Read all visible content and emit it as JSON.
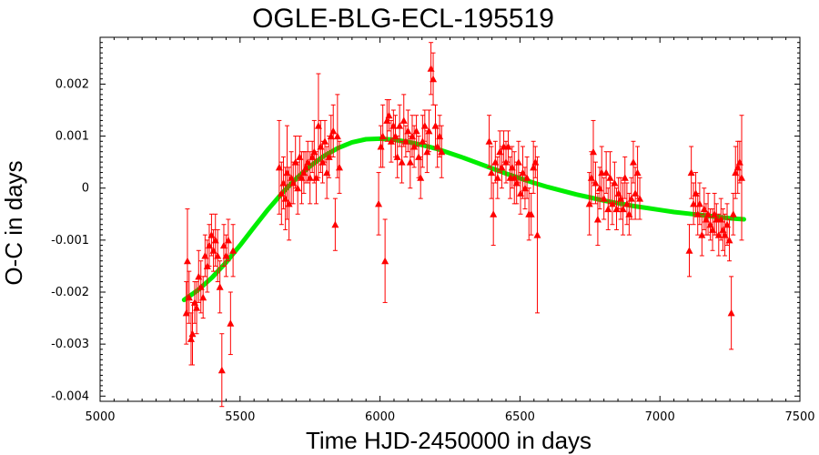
{
  "chart_data": {
    "type": "scatter",
    "title": "OGLE-BLG-ECL-195519",
    "xlabel": "Time HJD-2450000 in days",
    "ylabel": "O-C in days",
    "xlim": [
      5000,
      7500
    ],
    "ylim": [
      -0.0041,
      0.0029
    ],
    "x_ticks": [
      5000,
      5500,
      6000,
      6500,
      7000,
      7500
    ],
    "x_tick_labels": [
      "5000",
      "5500",
      "6000",
      "6500",
      "7000",
      "7500"
    ],
    "y_ticks": [
      0.002,
      0.001,
      0,
      -0.001,
      -0.002,
      -0.003,
      -0.004
    ],
    "y_tick_labels": [
      "0.002",
      "0.001",
      "0",
      "-0.001",
      "-0.002",
      "-0.003",
      "-0.004"
    ],
    "grid": false,
    "colors": {
      "points": "#ff0000",
      "fit": "#00ee00"
    },
    "series": [
      {
        "kind": "points_with_errorbars",
        "points": [
          [
            5308,
            -0.0024,
            0.0006
          ],
          [
            5312,
            -0.0014,
            0.001
          ],
          [
            5318,
            -0.0021,
            0.0005
          ],
          [
            5325,
            -0.0029,
            0.0005
          ],
          [
            5330,
            -0.0028,
            0.0006
          ],
          [
            5338,
            -0.0022,
            0.0004
          ],
          [
            5345,
            -0.0023,
            0.0005
          ],
          [
            5352,
            -0.0017,
            0.0005
          ],
          [
            5360,
            -0.0019,
            0.0005
          ],
          [
            5368,
            -0.0021,
            0.0004
          ],
          [
            5375,
            -0.0013,
            0.0004
          ],
          [
            5383,
            -0.0015,
            0.0005
          ],
          [
            5390,
            -0.0011,
            0.0004
          ],
          [
            5398,
            -0.0009,
            0.0004
          ],
          [
            5405,
            -0.0012,
            0.0004
          ],
          [
            5412,
            -0.001,
            0.0005
          ],
          [
            5420,
            -0.0013,
            0.0005
          ],
          [
            5428,
            -0.0019,
            0.0005
          ],
          [
            5435,
            -0.0035,
            0.0007
          ],
          [
            5442,
            -0.0011,
            0.0004
          ],
          [
            5450,
            -0.0013,
            0.0004
          ],
          [
            5458,
            -0.001,
            0.0004
          ],
          [
            5466,
            -0.0026,
            0.0006
          ],
          [
            5475,
            -0.0012,
            0.0005
          ],
          [
            5640,
            0.0004,
            0.0009
          ],
          [
            5648,
            -0.0001,
            0.0006
          ],
          [
            5655,
            0.0001,
            0.0005
          ],
          [
            5662,
            -0.0002,
            0.0006
          ],
          [
            5668,
            0.0003,
            0.0009
          ],
          [
            5675,
            -0.0003,
            0.0007
          ],
          [
            5683,
            0.0002,
            0.0005
          ],
          [
            5690,
            0.0001,
            0.0004
          ],
          [
            5698,
            0.0005,
            0.0005
          ],
          [
            5706,
            0.0,
            0.0005
          ],
          [
            5713,
            0.0006,
            0.0004
          ],
          [
            5720,
            0.0002,
            0.0005
          ],
          [
            5728,
            0.0003,
            0.0004
          ],
          [
            5735,
            0.0004,
            0.0003
          ],
          [
            5742,
            0.0005,
            0.0004
          ],
          [
            5750,
            0.0002,
            0.0005
          ],
          [
            5758,
            0.0006,
            0.0003
          ],
          [
            5765,
            0.0007,
            0.0006
          ],
          [
            5772,
            0.0002,
            0.0005
          ],
          [
            5780,
            0.0012,
            0.001
          ],
          [
            5788,
            0.0008,
            0.0005
          ],
          [
            5795,
            0.0005,
            0.0004
          ],
          [
            5803,
            0.0009,
            0.0004
          ],
          [
            5810,
            0.0003,
            0.0005
          ],
          [
            5818,
            0.0006,
            0.0004
          ],
          [
            5825,
            0.001,
            0.0004
          ],
          [
            5833,
            0.0011,
            0.0005
          ],
          [
            5840,
            -0.0007,
            0.0005
          ],
          [
            5848,
            0.001,
            0.0008
          ],
          [
            5855,
            0.0004,
            0.0005
          ],
          [
            5995,
            -0.0003,
            0.0006
          ],
          [
            6003,
            0.0008,
            0.0004
          ],
          [
            6010,
            0.001,
            0.0006
          ],
          [
            6018,
            -0.0014,
            0.0008
          ],
          [
            6025,
            0.0013,
            0.0004
          ],
          [
            6032,
            0.0014,
            0.0003
          ],
          [
            6040,
            0.0009,
            0.0004
          ],
          [
            6048,
            0.0012,
            0.0003
          ],
          [
            6055,
            0.001,
            0.0004
          ],
          [
            6062,
            0.0006,
            0.0004
          ],
          [
            6070,
            0.0012,
            0.0004
          ],
          [
            6078,
            0.0005,
            0.0004
          ],
          [
            6085,
            0.0013,
            0.0005
          ],
          [
            6092,
            0.0009,
            0.0003
          ],
          [
            6100,
            0.0011,
            0.0004
          ],
          [
            6108,
            0.0005,
            0.0005
          ],
          [
            6115,
            0.001,
            0.0004
          ],
          [
            6122,
            0.0008,
            0.0004
          ],
          [
            6130,
            0.0011,
            0.0003
          ],
          [
            6138,
            0.0006,
            0.0004
          ],
          [
            6145,
            0.0002,
            0.0004
          ],
          [
            6152,
            0.0009,
            0.0005
          ],
          [
            6160,
            0.0012,
            0.0003
          ],
          [
            6168,
            0.0007,
            0.0004
          ],
          [
            6175,
            0.0011,
            0.0004
          ],
          [
            6182,
            0.0023,
            0.0005
          ],
          [
            6190,
            0.0021,
            0.0005
          ],
          [
            6198,
            0.0012,
            0.0004
          ],
          [
            6205,
            0.0008,
            0.0004
          ],
          [
            6213,
            0.001,
            0.0004
          ],
          [
            6220,
            0.0007,
            0.0005
          ],
          [
            6390,
            0.0009,
            0.0005
          ],
          [
            6398,
            0.0003,
            0.0005
          ],
          [
            6405,
            -0.0005,
            0.0006
          ],
          [
            6412,
            0.0005,
            0.0004
          ],
          [
            6420,
            0.0002,
            0.0004
          ],
          [
            6428,
            0.0007,
            0.0004
          ],
          [
            6435,
            0.0004,
            0.0004
          ],
          [
            6442,
            0.0008,
            0.0003
          ],
          [
            6450,
            0.0005,
            0.0004
          ],
          [
            6458,
            0.0008,
            0.0003
          ],
          [
            6465,
            0.0002,
            0.0004
          ],
          [
            6472,
            0.0004,
            0.0004
          ],
          [
            6480,
            0.0002,
            0.0005
          ],
          [
            6488,
            0.0001,
            0.0004
          ],
          [
            6495,
            0.0005,
            0.0004
          ],
          [
            6502,
            -0.0001,
            0.0004
          ],
          [
            6510,
            0.0003,
            0.0005
          ],
          [
            6518,
            0.0,
            0.0004
          ],
          [
            6525,
            0.0002,
            0.0004
          ],
          [
            6532,
            -0.0005,
            0.0005
          ],
          [
            6540,
            -0.0005,
            0.0004
          ],
          [
            6548,
            0.0004,
            0.0005
          ],
          [
            6555,
            0.0005,
            0.0003
          ],
          [
            6562,
            -0.0009,
            0.0015
          ],
          [
            6748,
            -0.0003,
            0.0006
          ],
          [
            6755,
            0.0002,
            0.0005
          ],
          [
            6762,
            0.0007,
            0.0006
          ],
          [
            6770,
            0.0001,
            0.0004
          ],
          [
            6778,
            -0.0006,
            0.0005
          ],
          [
            6785,
            0.0,
            0.0004
          ],
          [
            6792,
            0.0003,
            0.0005
          ],
          [
            6800,
            -0.0002,
            0.0004
          ],
          [
            6808,
            0.0003,
            0.0004
          ],
          [
            6815,
            -0.0004,
            0.0004
          ],
          [
            6822,
            0.0002,
            0.0005
          ],
          [
            6830,
            -0.0003,
            0.0004
          ],
          [
            6838,
            0.0001,
            0.0004
          ],
          [
            6845,
            -0.0004,
            0.0004
          ],
          [
            6852,
            -0.0001,
            0.0003
          ],
          [
            6860,
            -0.0002,
            0.0004
          ],
          [
            6868,
            -0.0004,
            0.0005
          ],
          [
            6875,
            0.0002,
            0.0004
          ],
          [
            6882,
            -0.0003,
            0.0004
          ],
          [
            6890,
            -0.0005,
            0.0004
          ],
          [
            6898,
            -0.0002,
            0.0004
          ],
          [
            6905,
            0.0005,
            0.0004
          ],
          [
            6912,
            -0.0001,
            0.0005
          ],
          [
            6920,
            0.0003,
            0.0005
          ],
          [
            6928,
            -0.0002,
            0.0004
          ],
          [
            7105,
            -0.0012,
            0.0005
          ],
          [
            7112,
            0.0003,
            0.0005
          ],
          [
            7120,
            -0.0003,
            0.0004
          ],
          [
            7128,
            -0.0001,
            0.0004
          ],
          [
            7135,
            -0.0005,
            0.0004
          ],
          [
            7142,
            -0.0003,
            0.0004
          ],
          [
            7150,
            -0.0009,
            0.0004
          ],
          [
            7158,
            -0.0004,
            0.0004
          ],
          [
            7165,
            -0.0006,
            0.0003
          ],
          [
            7172,
            -0.0005,
            0.0004
          ],
          [
            7180,
            -0.0007,
            0.0003
          ],
          [
            7188,
            -0.0008,
            0.0004
          ],
          [
            7195,
            -0.0005,
            0.0004
          ],
          [
            7202,
            -0.0006,
            0.0003
          ],
          [
            7210,
            -0.0009,
            0.0004
          ],
          [
            7218,
            -0.0006,
            0.0004
          ],
          [
            7225,
            -0.0008,
            0.0004
          ],
          [
            7232,
            -0.0009,
            0.0004
          ],
          [
            7240,
            -0.0007,
            0.0004
          ],
          [
            7248,
            -0.001,
            0.0004
          ],
          [
            7255,
            -0.0024,
            0.0007
          ],
          [
            7262,
            -0.0005,
            0.0004
          ],
          [
            7270,
            0.0003,
            0.0005
          ],
          [
            7278,
            0.0004,
            0.0005
          ],
          [
            7285,
            0.0005,
            0.0004
          ],
          [
            7292,
            0.0002,
            0.0012
          ]
        ]
      },
      {
        "kind": "fit_curve",
        "x": [
          5300,
          5350,
          5400,
          5450,
          5500,
          5550,
          5600,
          5650,
          5700,
          5750,
          5800,
          5850,
          5900,
          5950,
          6000,
          6050,
          6100,
          6150,
          6200,
          6250,
          6300,
          6350,
          6400,
          6450,
          6500,
          6550,
          6600,
          6650,
          6700,
          6750,
          6800,
          6850,
          6900,
          6950,
          7000,
          7050,
          7100,
          7150,
          7200,
          7250,
          7300
        ],
        "y": [
          -0.00215,
          -0.00196,
          -0.00172,
          -0.00143,
          -0.0011,
          -0.00075,
          -0.00041,
          -0.0001,
          0.00018,
          0.00042,
          0.00062,
          0.00077,
          0.00088,
          0.00094,
          0.00095,
          0.00093,
          0.00089,
          0.00083,
          0.00076,
          0.00067,
          0.00058,
          0.00048,
          0.00038,
          0.00028,
          0.00019,
          0.0001,
          2e-05,
          -5e-05,
          -0.00012,
          -0.00018,
          -0.00024,
          -0.00029,
          -0.00034,
          -0.00038,
          -0.00042,
          -0.00046,
          -0.00049,
          -0.00052,
          -0.00055,
          -0.00058,
          -0.0006
        ]
      }
    ]
  }
}
